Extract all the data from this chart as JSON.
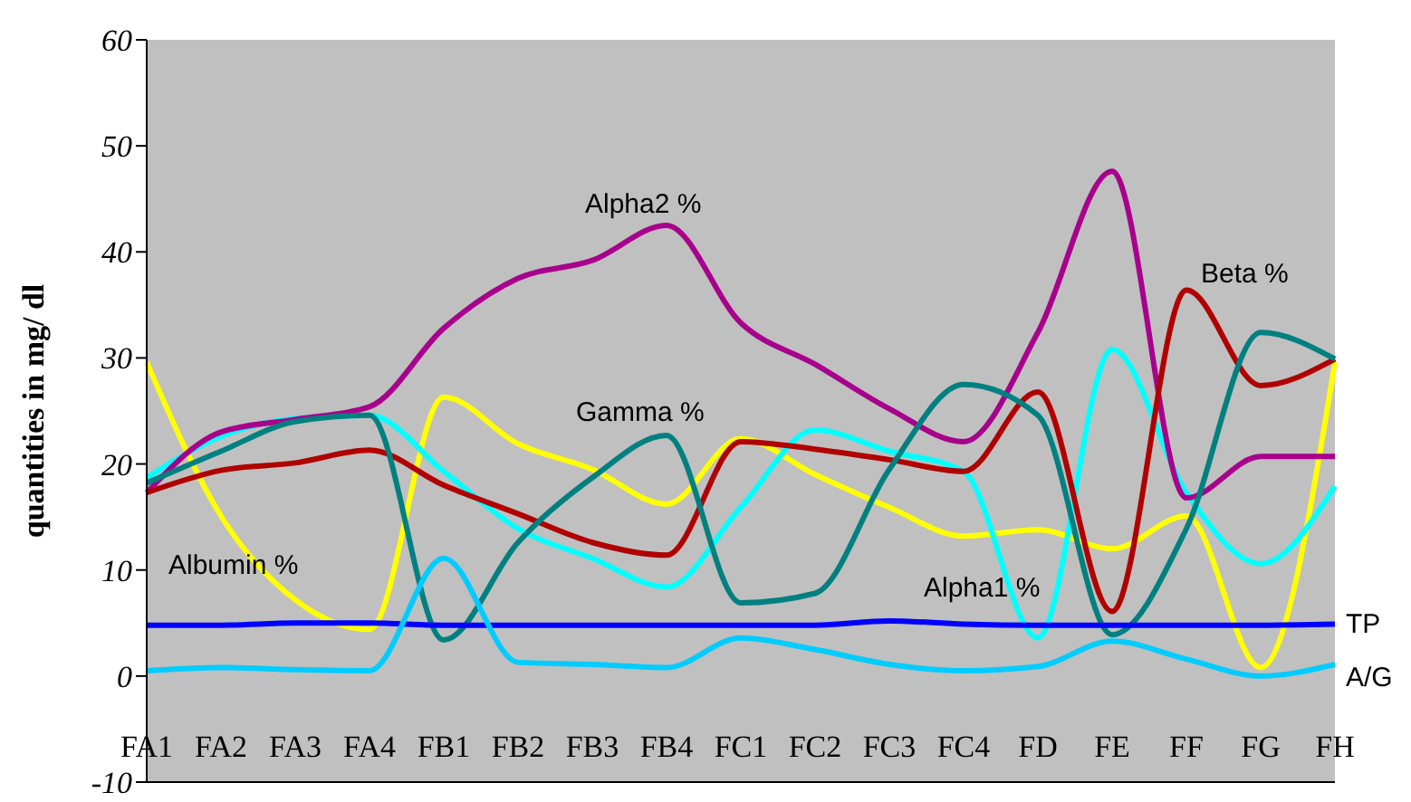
{
  "chart_data": {
    "type": "line",
    "ylabel": "quantities in mg/ dl",
    "categories": [
      "FA1",
      "FA2",
      "FA3",
      "FA4",
      "FB1",
      "FB2",
      "FB3",
      "FB4",
      "FC1",
      "FC2",
      "FC3",
      "FC4",
      "FD",
      "FE",
      "FF",
      "FG",
      "FH"
    ],
    "series": [
      {
        "name": "Albumin %",
        "color": "#ffff00",
        "values": [
          29.6,
          15.1,
          7.2,
          4.4,
          26.3,
          21.9,
          19.5,
          16.2,
          22.4,
          19.0,
          15.9,
          13.2,
          13.8,
          12.0,
          15.1,
          0.8,
          29.6
        ]
      },
      {
        "name": "Alpha1 %",
        "color": "#00ffff",
        "values": [
          18.7,
          22.6,
          24.3,
          24.6,
          19.3,
          13.9,
          11.1,
          8.4,
          15.9,
          23.2,
          21.2,
          19.3,
          3.6,
          30.8,
          17.3,
          10.6,
          17.9
        ]
      },
      {
        "name": "Alpha2 %",
        "color": "#a8008c",
        "values": [
          17.3,
          23.0,
          24.2,
          25.4,
          32.8,
          37.5,
          39.2,
          42.5,
          33.3,
          29.4,
          25.2,
          22.1,
          32.4,
          47.6,
          16.8,
          20.7,
          20.7
        ]
      },
      {
        "name": "Beta %",
        "color": "#b00000",
        "values": [
          17.3,
          19.4,
          20.1,
          21.3,
          18.0,
          15.3,
          12.6,
          11.4,
          22.1,
          21.4,
          20.4,
          19.3,
          26.8,
          6.1,
          36.4,
          27.4,
          29.9
        ]
      },
      {
        "name": "Gamma %",
        "color": "#008080",
        "values": [
          18.2,
          21.2,
          24.0,
          24.6,
          3.4,
          12.6,
          18.7,
          22.7,
          6.9,
          7.8,
          19.5,
          27.5,
          24.6,
          3.9,
          13.9,
          32.4,
          29.9
        ]
      },
      {
        "name": "TP",
        "color": "#0000ff",
        "values": [
          4.8,
          4.8,
          5.0,
          5.0,
          4.8,
          4.8,
          4.8,
          4.8,
          4.8,
          4.8,
          5.2,
          4.9,
          4.8,
          4.8,
          4.8,
          4.8,
          4.9
        ]
      },
      {
        "name": "A/G",
        "color": "#00ccff",
        "values": [
          0.5,
          0.8,
          0.6,
          0.5,
          11.1,
          1.3,
          1.1,
          0.8,
          3.6,
          2.5,
          1.1,
          0.5,
          0.9,
          3.3,
          1.6,
          0.0,
          1.1
        ]
      }
    ],
    "ylim": [
      -10,
      60
    ],
    "yticks": [
      -10,
      0,
      10,
      20,
      30,
      40,
      50,
      60
    ],
    "grid": false,
    "legend": false,
    "marker": "none",
    "line_style": "solid"
  }
}
